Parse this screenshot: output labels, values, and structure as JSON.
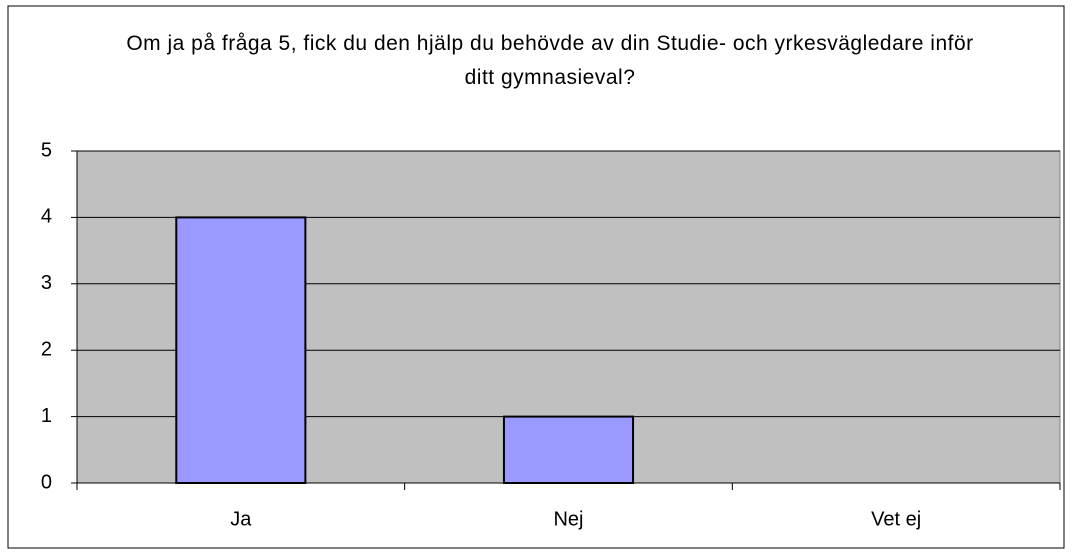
{
  "chart_data": {
    "type": "bar",
    "title": "Om ja på fråga 5, fick du den hjälp du behövde av din Studie- och yrkesvägledare inför ditt gymnasieval?",
    "categories": [
      "Ja",
      "Nej",
      "Vet ej"
    ],
    "values": [
      4,
      1,
      0
    ],
    "color": "#9999ff",
    "ylim": [
      0,
      5
    ],
    "yticks": [
      0,
      1,
      2,
      3,
      4,
      5
    ],
    "grid": true
  }
}
